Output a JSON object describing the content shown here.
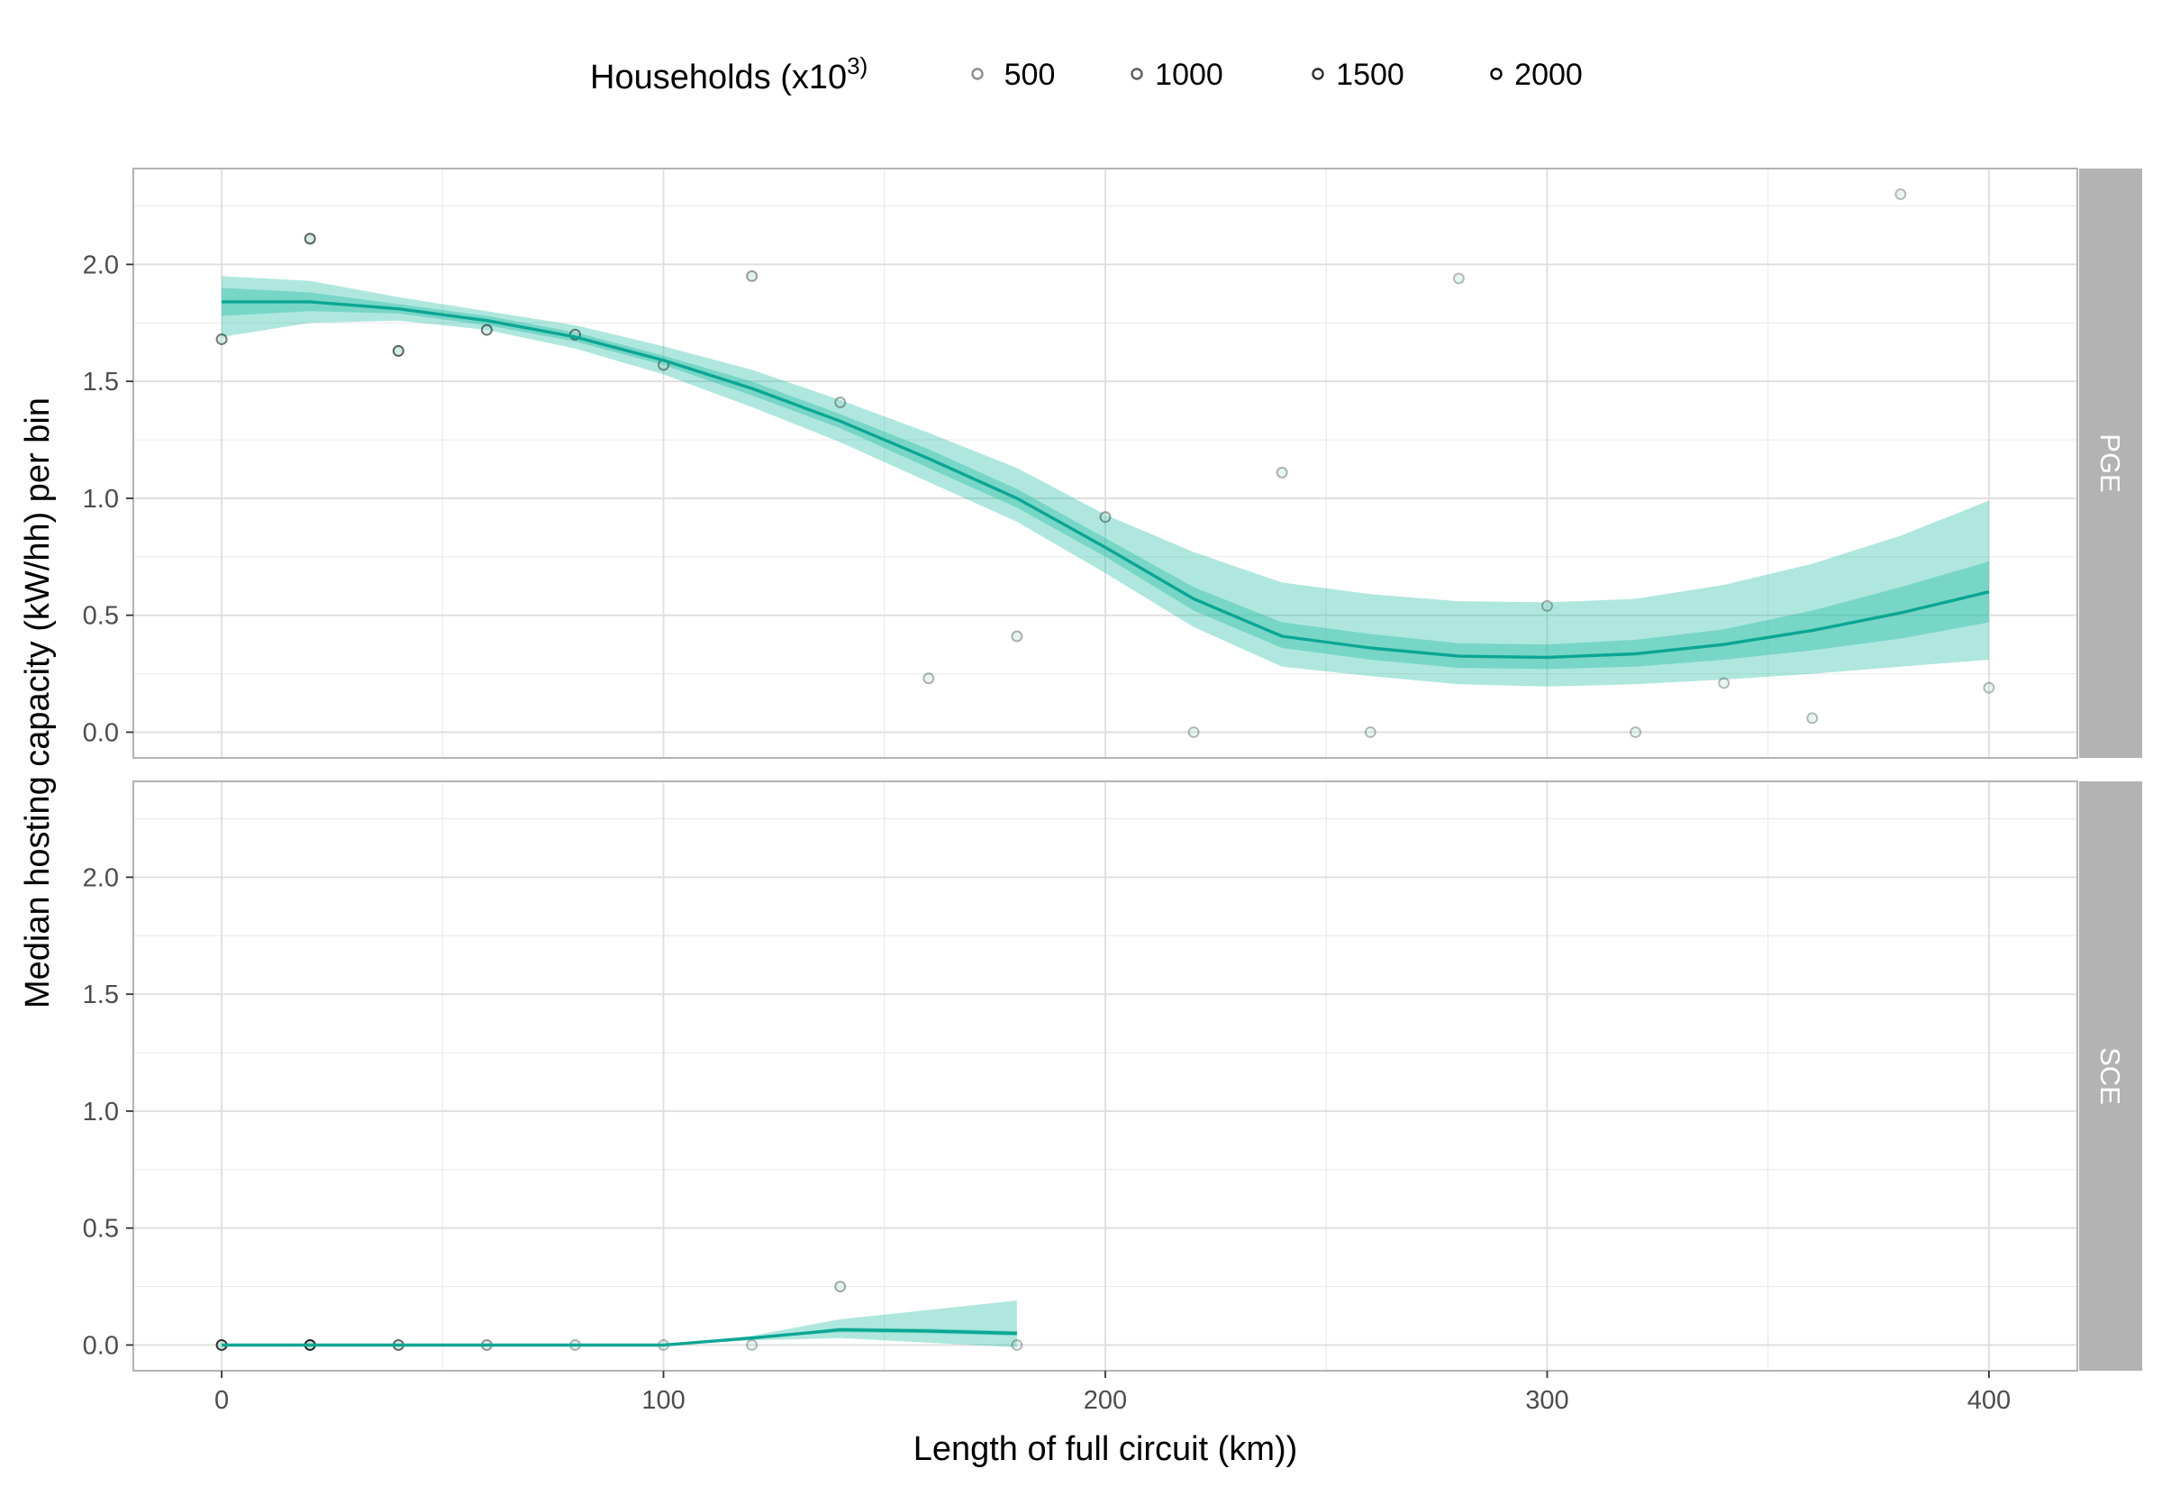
{
  "chart_data": {
    "type": "line",
    "xlabel": "Length of full circuit (km))",
    "ylabel": "Median hosting capacity (kW/hh) per bin",
    "xlim": [
      -20,
      420
    ],
    "ylim": [
      -0.11,
      2.41
    ],
    "x_ticks": [
      0,
      100,
      200,
      300,
      400
    ],
    "y_ticks": [
      0.0,
      0.5,
      1.0,
      1.5,
      2.0
    ],
    "x_tick_labels": [
      "0",
      "100",
      "200",
      "300",
      "400"
    ],
    "y_tick_labels": [
      "0.0",
      "0.5",
      "1.0",
      "1.5",
      "2.0"
    ],
    "grid": true,
    "legend": {
      "title": "Households (x10",
      "title_sup": "3)",
      "position": "top",
      "sizes": [
        500,
        1000,
        1500,
        2000
      ],
      "labels": [
        "500",
        "1000",
        "1500",
        "2000"
      ]
    },
    "line_color": "#0ba694",
    "band_color": "#2ebfa8",
    "panels": [
      {
        "name": "PGE",
        "points": [
          {
            "x": 0,
            "y": 1.68,
            "households": 1000
          },
          {
            "x": 20,
            "y": 2.11,
            "households": 1300
          },
          {
            "x": 40,
            "y": 1.63,
            "households": 1300
          },
          {
            "x": 60,
            "y": 1.72,
            "households": 1100
          },
          {
            "x": 80,
            "y": 1.7,
            "households": 900
          },
          {
            "x": 100,
            "y": 1.57,
            "households": 700
          },
          {
            "x": 120,
            "y": 1.95,
            "households": 600
          },
          {
            "x": 140,
            "y": 1.41,
            "households": 500
          },
          {
            "x": 160,
            "y": 0.23,
            "households": 400
          },
          {
            "x": 180,
            "y": 0.41,
            "households": 400
          },
          {
            "x": 200,
            "y": 0.92,
            "households": 600
          },
          {
            "x": 220,
            "y": 0.0,
            "households": 300
          },
          {
            "x": 240,
            "y": 1.11,
            "households": 400
          },
          {
            "x": 260,
            "y": 0.0,
            "households": 300
          },
          {
            "x": 280,
            "y": 1.94,
            "households": 300
          },
          {
            "x": 300,
            "y": 0.54,
            "households": 400
          },
          {
            "x": 320,
            "y": 0.0,
            "households": 300
          },
          {
            "x": 340,
            "y": 0.21,
            "households": 300
          },
          {
            "x": 360,
            "y": 0.06,
            "households": 300
          },
          {
            "x": 380,
            "y": 2.3,
            "households": 300
          },
          {
            "x": 400,
            "y": 0.19,
            "households": 300
          }
        ],
        "fit": {
          "x": [
            0,
            20,
            40,
            60,
            80,
            100,
            120,
            140,
            160,
            180,
            200,
            220,
            240,
            260,
            280,
            300,
            320,
            340,
            360,
            380,
            400
          ],
          "y": [
            1.84,
            1.84,
            1.81,
            1.76,
            1.69,
            1.59,
            1.47,
            1.33,
            1.17,
            1.0,
            0.79,
            0.57,
            0.41,
            0.36,
            0.325,
            0.32,
            0.335,
            0.375,
            0.435,
            0.51,
            0.6
          ],
          "inner_lower": [
            1.78,
            1.8,
            1.79,
            1.74,
            1.67,
            1.57,
            1.44,
            1.3,
            1.13,
            0.96,
            0.75,
            0.52,
            0.36,
            0.31,
            0.275,
            0.27,
            0.28,
            0.31,
            0.35,
            0.4,
            0.47
          ],
          "inner_upper": [
            1.9,
            1.88,
            1.83,
            1.78,
            1.71,
            1.61,
            1.5,
            1.36,
            1.21,
            1.04,
            0.83,
            0.62,
            0.47,
            0.42,
            0.38,
            0.375,
            0.395,
            0.44,
            0.52,
            0.62,
            0.73
          ],
          "outer_lower": [
            1.69,
            1.75,
            1.76,
            1.72,
            1.64,
            1.53,
            1.39,
            1.24,
            1.07,
            0.9,
            0.68,
            0.45,
            0.28,
            0.24,
            0.205,
            0.195,
            0.205,
            0.225,
            0.25,
            0.28,
            0.31
          ],
          "outer_upper": [
            1.95,
            1.93,
            1.86,
            1.8,
            1.74,
            1.65,
            1.55,
            1.42,
            1.28,
            1.13,
            0.93,
            0.77,
            0.64,
            0.59,
            0.56,
            0.555,
            0.57,
            0.63,
            0.72,
            0.84,
            0.99
          ]
        }
      },
      {
        "name": "SCE",
        "points": [
          {
            "x": 0,
            "y": 0.0,
            "households": 1800
          },
          {
            "x": 20,
            "y": 0.0,
            "households": 2000
          },
          {
            "x": 40,
            "y": 0.0,
            "households": 1200
          },
          {
            "x": 60,
            "y": 0.0,
            "households": 700
          },
          {
            "x": 80,
            "y": 0.0,
            "households": 400
          },
          {
            "x": 100,
            "y": 0.0,
            "households": 300
          },
          {
            "x": 120,
            "y": 0.0,
            "households": 300
          },
          {
            "x": 140,
            "y": 0.25,
            "households": 500
          },
          {
            "x": 180,
            "y": 0.0,
            "households": 300
          }
        ],
        "fit": {
          "x": [
            0,
            20,
            40,
            60,
            80,
            100,
            120,
            140,
            160,
            180
          ],
          "y": [
            0.0,
            0.0,
            0.0,
            0.0,
            0.0,
            0.0,
            0.03,
            0.065,
            0.06,
            0.05
          ],
          "inner_lower": [
            0.0,
            0.0,
            0.0,
            0.0,
            0.0,
            0.0,
            0.03,
            0.055,
            0.05,
            0.04
          ],
          "inner_upper": [
            0.0,
            0.0,
            0.0,
            0.0,
            0.0,
            0.0,
            0.03,
            0.075,
            0.07,
            0.06
          ],
          "outer_lower": [
            0.0,
            0.0,
            0.0,
            0.0,
            0.0,
            0.0,
            0.02,
            0.03,
            0.01,
            -0.01
          ],
          "outer_upper": [
            0.0,
            0.0,
            0.0,
            0.0,
            0.0,
            0.0,
            0.04,
            0.11,
            0.15,
            0.19
          ]
        }
      }
    ]
  }
}
